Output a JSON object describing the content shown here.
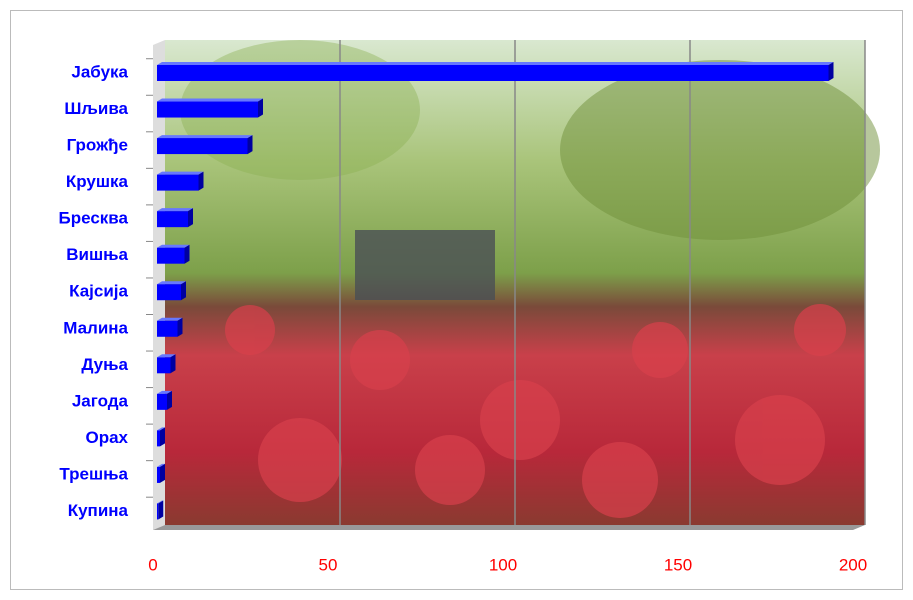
{
  "chart_data": {
    "type": "bar",
    "orientation": "horizontal",
    "categories": [
      "Јабука",
      "Шљива",
      "Грожђе",
      "Крушка",
      "Бресква",
      "Вишња",
      "Кајсија",
      "Малина",
      "Дуња",
      "Јагода",
      "Орах",
      "Трешња",
      "Купина"
    ],
    "values": [
      193,
      30,
      27,
      13,
      10,
      9,
      8,
      7,
      5,
      4,
      2,
      2,
      1.5
    ],
    "color": "#0000ff",
    "xlim": [
      0,
      200
    ],
    "xticks": [
      0,
      50,
      100,
      150,
      200
    ],
    "grid": true,
    "tick_label_color": "#ff0000",
    "category_label_color": "#0000ff"
  }
}
